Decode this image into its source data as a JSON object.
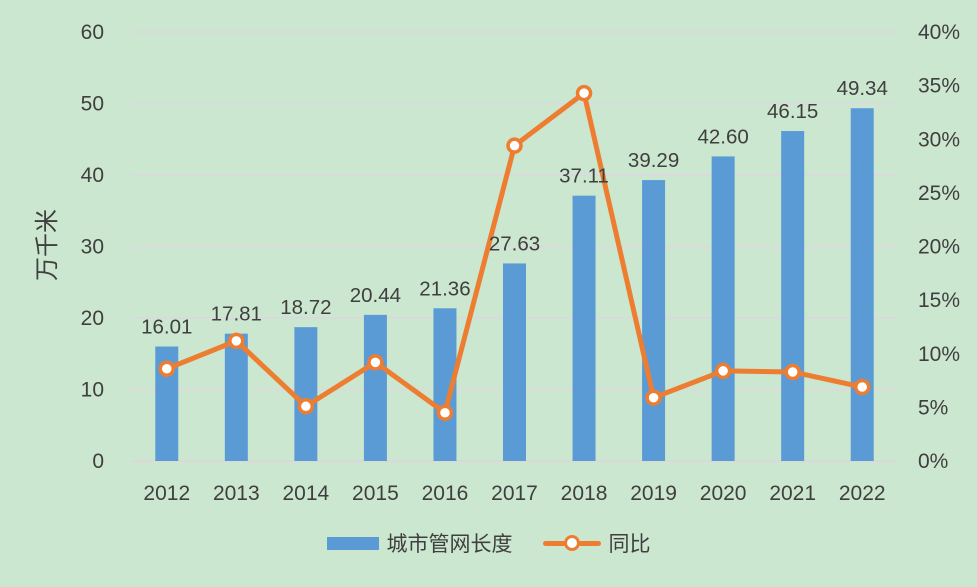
{
  "chart_data": {
    "type": "bar",
    "subtype": "bar+line-combo",
    "categories": [
      "2012",
      "2013",
      "2014",
      "2015",
      "2016",
      "2017",
      "2018",
      "2019",
      "2020",
      "2021",
      "2022"
    ],
    "series": [
      {
        "name": "城市管网长度",
        "type": "bar",
        "axis": "left",
        "values": [
          16.01,
          17.81,
          18.72,
          20.44,
          21.36,
          27.63,
          37.11,
          39.29,
          42.6,
          46.15,
          49.34
        ],
        "data_labels": [
          "16.01",
          "17.81",
          "18.72",
          "20.44",
          "21.36",
          "27.63",
          "37.11",
          "39.29",
          "42.60",
          "46.15",
          "49.34"
        ]
      },
      {
        "name": "同比",
        "type": "line",
        "axis": "right",
        "values_pct": [
          8.6,
          11.2,
          5.1,
          9.2,
          4.5,
          29.4,
          34.3,
          5.9,
          8.4,
          8.3,
          6.9
        ]
      }
    ],
    "left_axis": {
      "title": "万千米",
      "min": 0,
      "max": 60,
      "step": 10,
      "ticks": [
        "0",
        "10",
        "20",
        "30",
        "40",
        "50",
        "60"
      ]
    },
    "right_axis": {
      "min": 0,
      "max": 40,
      "step": 5,
      "ticks": [
        "0%",
        "5%",
        "10%",
        "15%",
        "20%",
        "25%",
        "30%",
        "35%",
        "40%"
      ]
    },
    "grid": true,
    "legend_position": "bottom",
    "colors": {
      "background": "#CCE7CF",
      "bar": "#5B9BD5",
      "line": "#ED7D31",
      "marker_fill": "#FFFFFF",
      "gridline": "#DBD8DE",
      "axis_line": "#D9D9D9",
      "text": "#3F3F3F"
    }
  }
}
